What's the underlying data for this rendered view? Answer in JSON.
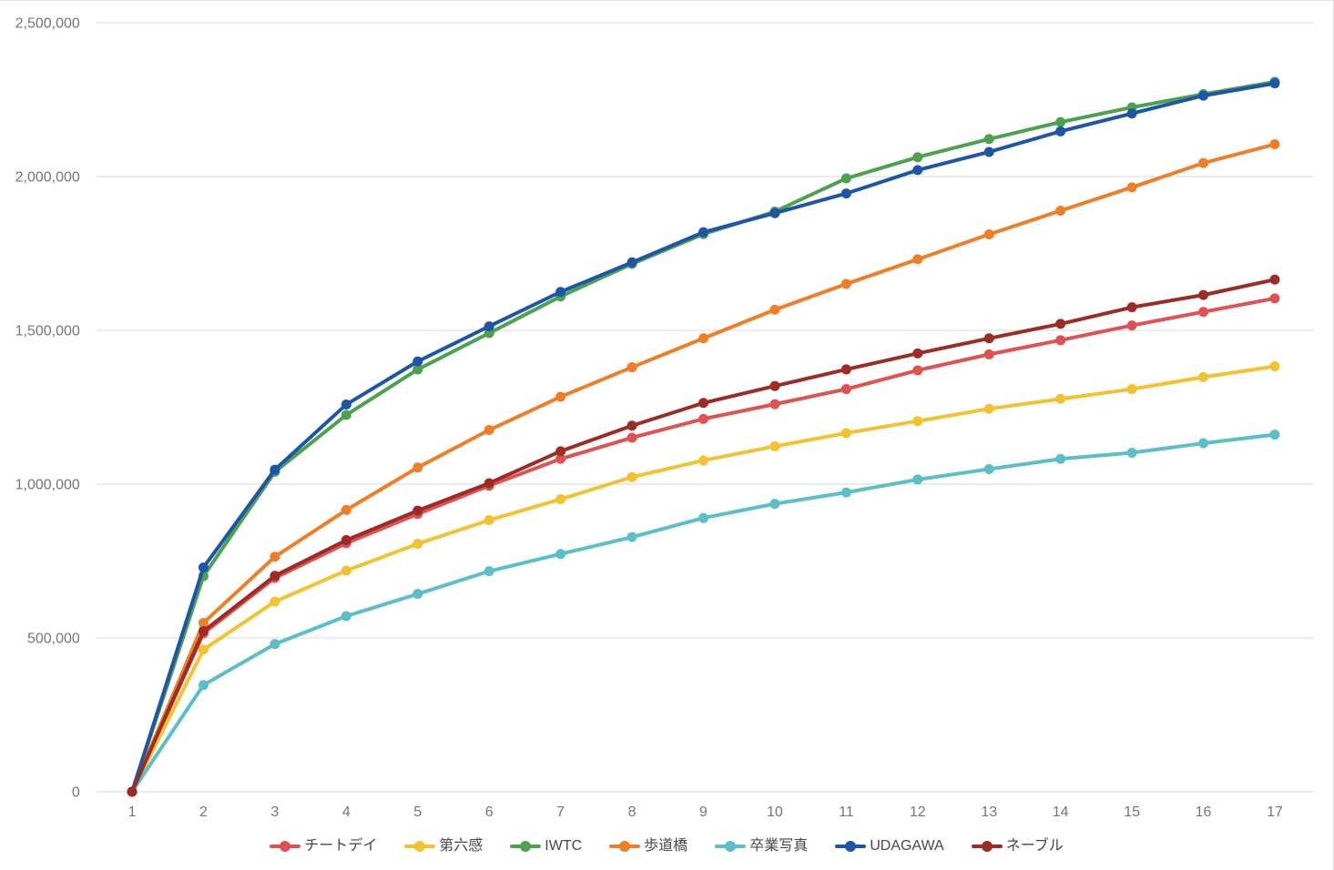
{
  "chart_data": {
    "type": "line",
    "title": "",
    "xlabel": "",
    "ylabel": "",
    "grid": true,
    "legend_position": "bottom",
    "axis_label_color": "#757575",
    "grid_color": "#d9d9d9",
    "background_color": "#ffffff",
    "ylim": [
      0,
      2500000
    ],
    "y_ticks": [
      {
        "value": 0,
        "label": "0"
      },
      {
        "value": 500000,
        "label": "500,000"
      },
      {
        "value": 1000000,
        "label": "1,000,000"
      },
      {
        "value": 1500000,
        "label": "1,500,000"
      },
      {
        "value": 2000000,
        "label": "2,000,000"
      },
      {
        "value": 2500000,
        "label": "2,500,000"
      }
    ],
    "categories": [
      "1",
      "2",
      "3",
      "4",
      "5",
      "6",
      "7",
      "8",
      "9",
      "10",
      "11",
      "12",
      "13",
      "14",
      "15",
      "16",
      "17"
    ],
    "series": [
      {
        "name": "チートデイ",
        "color": "#E05252",
        "values": [
          0,
          515000,
          695000,
          808000,
          903000,
          995000,
          1082000,
          1151000,
          1212000,
          1260000,
          1309000,
          1370000,
          1422000,
          1468000,
          1516000,
          1560000,
          1604000
        ]
      },
      {
        "name": "第六感",
        "color": "#F2C230",
        "values": [
          0,
          462000,
          618000,
          719000,
          806000,
          883000,
          951000,
          1023000,
          1077000,
          1123000,
          1166000,
          1205000,
          1245000,
          1277000,
          1309000,
          1348000,
          1383000
        ]
      },
      {
        "name": "IWTC",
        "color": "#4CA24E",
        "values": [
          0,
          701000,
          1040000,
          1225000,
          1373000,
          1491000,
          1610000,
          1716000,
          1813000,
          1886000,
          1994000,
          2063000,
          2122000,
          2177000,
          2225000,
          2268000,
          2308000
        ]
      },
      {
        "name": "歩道橋",
        "color": "#F07E26",
        "values": [
          0,
          549000,
          764000,
          916000,
          1054000,
          1176000,
          1284000,
          1380000,
          1474000,
          1567000,
          1651000,
          1731000,
          1812000,
          1889000,
          1965000,
          2044000,
          2105000
        ]
      },
      {
        "name": "卒業写真",
        "color": "#5ABFC9",
        "values": [
          0,
          347000,
          480000,
          571000,
          643000,
          717000,
          773000,
          828000,
          890000,
          936000,
          973000,
          1015000,
          1049000,
          1082000,
          1102000,
          1133000,
          1161000
        ]
      },
      {
        "name": "UDAGAWA",
        "color": "#1D56A9",
        "values": [
          0,
          729000,
          1047000,
          1259000,
          1399000,
          1513000,
          1625000,
          1721000,
          1819000,
          1881000,
          1945000,
          2021000,
          2080000,
          2147000,
          2205000,
          2263000,
          2303000
        ]
      },
      {
        "name": "ネーブル",
        "color": "#9D2C24",
        "values": [
          0,
          522000,
          702000,
          818000,
          914000,
          1003000,
          1107000,
          1190000,
          1264000,
          1319000,
          1373000,
          1425000,
          1474000,
          1521000,
          1575000,
          1615000,
          1665000
        ]
      }
    ]
  }
}
